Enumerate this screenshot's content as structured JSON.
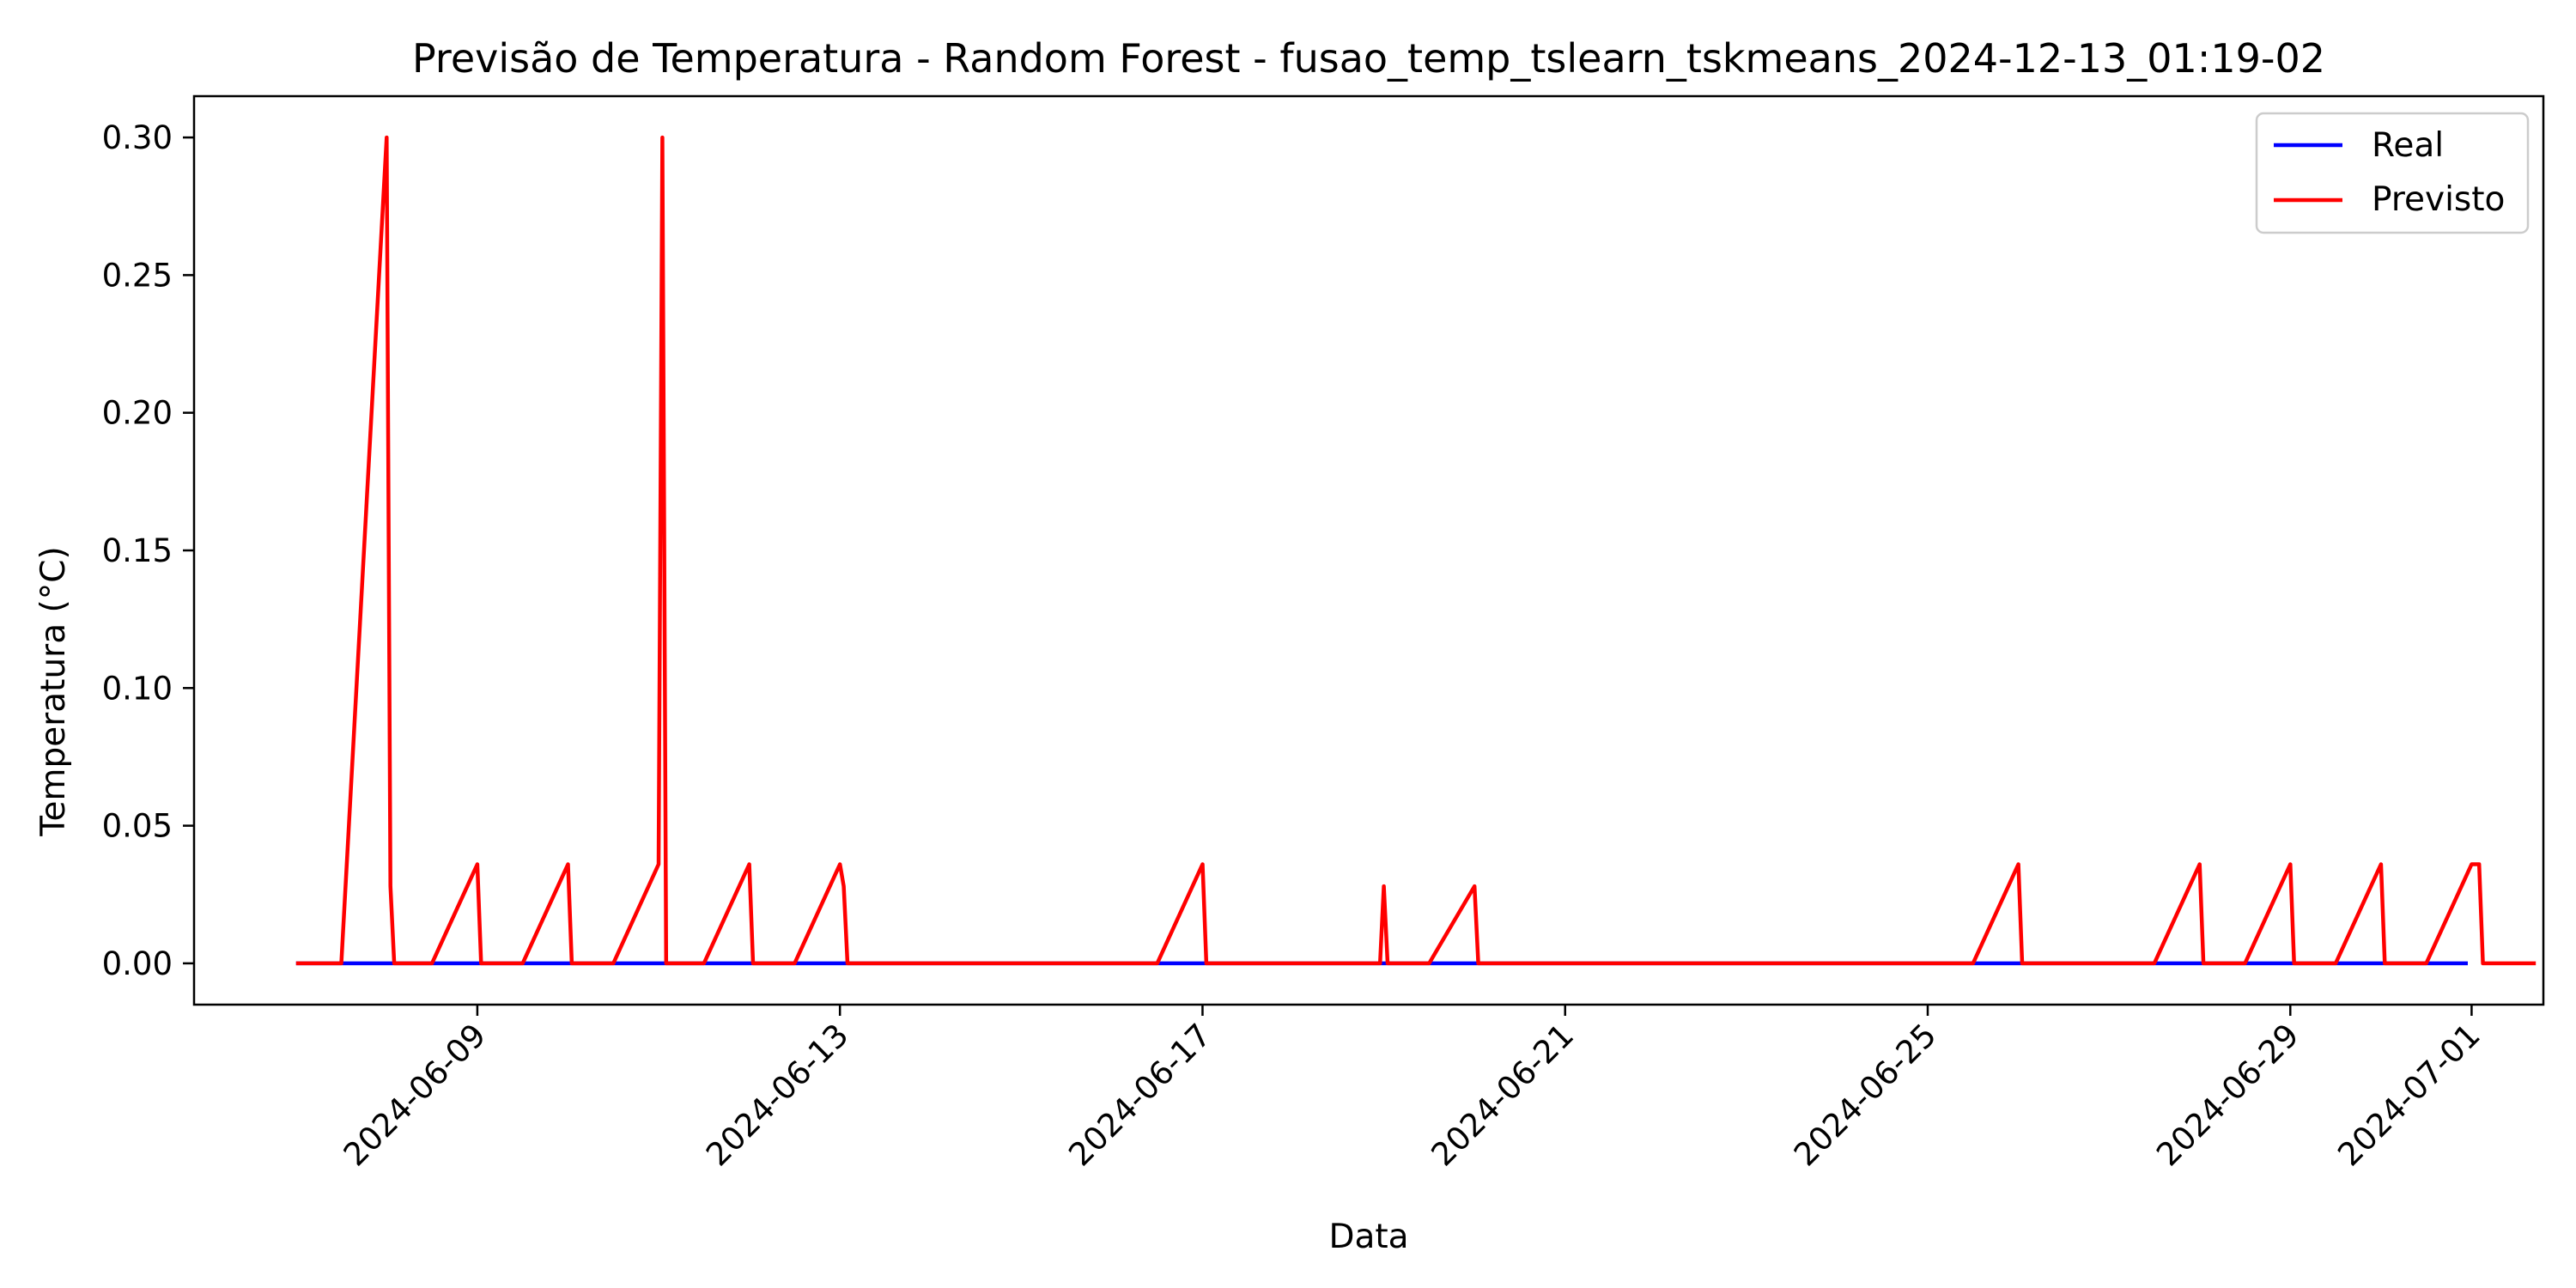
{
  "chart_data": {
    "type": "line",
    "title": "Previsão de Temperatura - Random Forest - fusao_temp_tslearn_tskmeans_2024-12-13_01:19-02",
    "xlabel": "Data",
    "ylabel": "Temperatura (°C)",
    "x_type": "date",
    "xlim": [
      "2024-06-05T21:00",
      "2024-07-01T19:00"
    ],
    "ylim": [
      -0.015,
      0.315
    ],
    "x_ticks": [
      "2024-06-09",
      "2024-06-13",
      "2024-06-17",
      "2024-06-21",
      "2024-06-25",
      "2024-06-29",
      "2024-07-01"
    ],
    "y_ticks": [
      "0.00",
      "0.05",
      "0.10",
      "0.15",
      "0.20",
      "0.25",
      "0.30"
    ],
    "grid": false,
    "legend_position": "top-right",
    "series": [
      {
        "name": "Real",
        "color": "#0000ff",
        "points": [
          [
            "2024-06-07T00:00",
            0
          ],
          [
            "2024-06-30T23:00",
            0
          ]
        ]
      },
      {
        "name": "Previsto",
        "color": "#ff0000",
        "points": [
          [
            "2024-06-07T00:00",
            0
          ],
          [
            "2024-06-07T12:00",
            0
          ],
          [
            "2024-06-08T00:00",
            0.3
          ],
          [
            "2024-06-08T01:00",
            0.028
          ],
          [
            "2024-06-08T02:00",
            0
          ],
          [
            "2024-06-08T12:00",
            0
          ],
          [
            "2024-06-09T00:00",
            0.036
          ],
          [
            "2024-06-09T01:00",
            0
          ],
          [
            "2024-06-09T12:00",
            0
          ],
          [
            "2024-06-10T00:00",
            0.036
          ],
          [
            "2024-06-10T01:00",
            0
          ],
          [
            "2024-06-10T12:00",
            0
          ],
          [
            "2024-06-11T00:00",
            0.036
          ],
          [
            "2024-06-11T01:00",
            0.3
          ],
          [
            "2024-06-11T02:00",
            0
          ],
          [
            "2024-06-11T12:00",
            0
          ],
          [
            "2024-06-12T00:00",
            0.036
          ],
          [
            "2024-06-12T01:00",
            0
          ],
          [
            "2024-06-12T12:00",
            0
          ],
          [
            "2024-06-13T00:00",
            0.036
          ],
          [
            "2024-06-13T01:00",
            0.028
          ],
          [
            "2024-06-13T02:00",
            0
          ],
          [
            "2024-06-16T12:00",
            0
          ],
          [
            "2024-06-17T00:00",
            0.036
          ],
          [
            "2024-06-17T01:00",
            0
          ],
          [
            "2024-06-18T23:00",
            0
          ],
          [
            "2024-06-19T00:00",
            0.028
          ],
          [
            "2024-06-19T01:00",
            0
          ],
          [
            "2024-06-19T12:00",
            0
          ],
          [
            "2024-06-20T00:00",
            0.028
          ],
          [
            "2024-06-20T01:00",
            0
          ],
          [
            "2024-06-25T12:00",
            0
          ],
          [
            "2024-06-26T00:00",
            0.036
          ],
          [
            "2024-06-26T01:00",
            0
          ],
          [
            "2024-06-27T12:00",
            0
          ],
          [
            "2024-06-28T00:00",
            0.036
          ],
          [
            "2024-06-28T01:00",
            0
          ],
          [
            "2024-06-28T12:00",
            0
          ],
          [
            "2024-06-29T00:00",
            0.036
          ],
          [
            "2024-06-29T01:00",
            0
          ],
          [
            "2024-06-29T12:00",
            0
          ],
          [
            "2024-06-30T00:00",
            0.036
          ],
          [
            "2024-06-30T01:00",
            0
          ],
          [
            "2024-06-30T12:00",
            0
          ],
          [
            "2024-07-01T00:00",
            0.036
          ],
          [
            "2024-07-01T02:00",
            0.036
          ],
          [
            "2024-07-01T03:00",
            0
          ],
          [
            "2024-07-01T17:00",
            0
          ]
        ]
      }
    ]
  }
}
